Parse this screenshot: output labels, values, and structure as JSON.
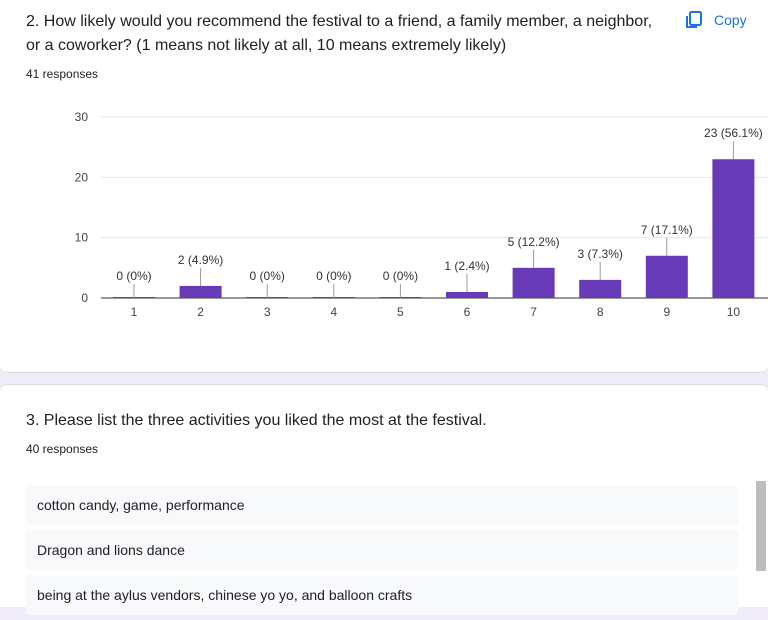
{
  "question2": {
    "title": "2. How likely would you recommend the festival to a friend, a family member, a neighbor, or a coworker?  (1 means not likely at all, 10 means extremely likely)",
    "responses": "41 responses",
    "copy_label": "Copy",
    "copy_icon": "copy-icon"
  },
  "chart_data": {
    "type": "bar",
    "categories": [
      "1",
      "2",
      "3",
      "4",
      "5",
      "6",
      "7",
      "8",
      "9",
      "10"
    ],
    "values": [
      0,
      2,
      0,
      0,
      0,
      1,
      5,
      3,
      7,
      23
    ],
    "data_labels": [
      "0 (0%)",
      "2 (4.9%)",
      "0 (0%)",
      "0 (0%)",
      "0 (0%)",
      "1 (2.4%)",
      "5 (12.2%)",
      "3 (7.3%)",
      "7 (17.1%)",
      "23 (56.1%)"
    ],
    "yticks": [
      "0",
      "10",
      "20",
      "30"
    ],
    "ylim": [
      0,
      30
    ],
    "grid": true,
    "colors": {
      "bar": "#673ab7",
      "grid": "#e8e8e8",
      "axis": "#333333"
    }
  },
  "question3": {
    "title": "3. Please list the three activities you liked the most at the festival.",
    "responses": "40 responses",
    "items": [
      "cotton candy, game, performance",
      "Dragon and lions dance",
      "being at the aylus vendors, chinese yo yo, and balloon crafts"
    ]
  }
}
